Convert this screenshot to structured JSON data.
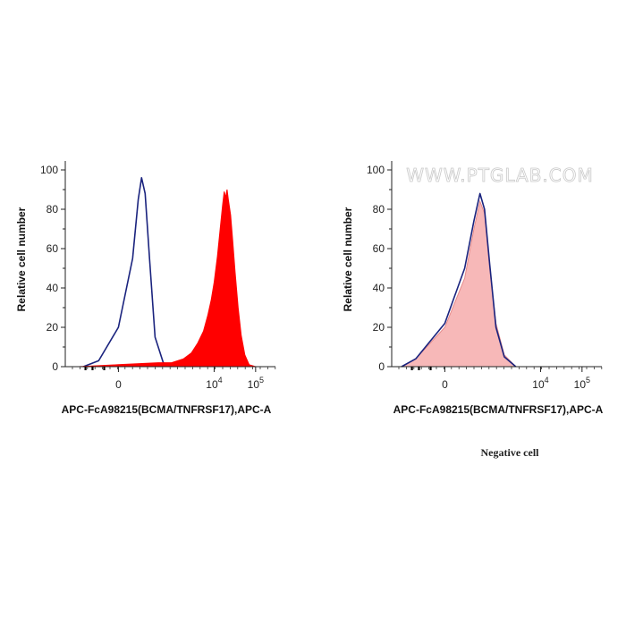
{
  "caption": "Negative cell",
  "watermark": "WWW.PTGLAB.COM",
  "colors": {
    "stained_fill": "#ff0000",
    "control_line": "#1a237e",
    "negative_fill": "#f7b8b8"
  },
  "chart_data": [
    {
      "type": "area",
      "xlabel": "APC-FcA98215(BCMA/TNFRSF17),APC-A",
      "ylabel": "Relative cell number",
      "x_scale": "biexponential",
      "ylim": [
        0,
        100
      ],
      "y_ticks": [
        0,
        20,
        40,
        60,
        80,
        100
      ],
      "x_tick_labels": [
        {
          "pos": 0,
          "base": "0",
          "exp": ""
        },
        {
          "pos": 10000,
          "base": "10",
          "exp": "4"
        },
        {
          "pos": 100000,
          "base": "10",
          "exp": "5"
        }
      ],
      "series": [
        {
          "style": "outline",
          "color": "#1a237e",
          "points": [
            [
              -300,
              0
            ],
            [
              -100,
              3
            ],
            [
              0,
              20
            ],
            [
              60,
              55
            ],
            [
              100,
              85
            ],
            [
              130,
              96
            ],
            [
              170,
              88
            ],
            [
              230,
              55
            ],
            [
              330,
              15
            ],
            [
              550,
              2
            ],
            [
              900,
              0
            ]
          ]
        },
        {
          "style": "filled",
          "color": "#ff0000",
          "points": [
            [
              -400,
              0
            ],
            [
              0,
              1
            ],
            [
              400,
              2
            ],
            [
              900,
              2
            ],
            [
              1800,
              4
            ],
            [
              2800,
              7
            ],
            [
              4000,
              12
            ],
            [
              5500,
              18
            ],
            [
              7000,
              26
            ],
            [
              8500,
              34
            ],
            [
              10000,
              43
            ],
            [
              12000,
              56
            ],
            [
              14000,
              70
            ],
            [
              16000,
              82
            ],
            [
              17500,
              89
            ],
            [
              19000,
              86
            ],
            [
              20500,
              90
            ],
            [
              22000,
              85
            ],
            [
              25000,
              77
            ],
            [
              28000,
              64
            ],
            [
              32000,
              48
            ],
            [
              38000,
              30
            ],
            [
              45000,
              16
            ],
            [
              55000,
              6
            ],
            [
              70000,
              1
            ],
            [
              100000,
              0
            ]
          ]
        }
      ]
    },
    {
      "type": "area",
      "xlabel": "APC-FcA98215(BCMA/TNFRSF17),APC-A",
      "ylabel": "Relative cell number",
      "x_scale": "biexponential",
      "ylim": [
        0,
        100
      ],
      "y_ticks": [
        0,
        20,
        40,
        60,
        80,
        100
      ],
      "x_tick_labels": [
        {
          "pos": 0,
          "base": "0",
          "exp": ""
        },
        {
          "pos": 10000,
          "base": "10",
          "exp": "4"
        },
        {
          "pos": 100000,
          "base": "10",
          "exp": "5"
        }
      ],
      "series": [
        {
          "style": "filled",
          "color": "#f7b8b8",
          "points": [
            [
              -500,
              0
            ],
            [
              -200,
              4
            ],
            [
              0,
              20
            ],
            [
              100,
              45
            ],
            [
              200,
              70
            ],
            [
              300,
              84
            ],
            [
              400,
              78
            ],
            [
              550,
              50
            ],
            [
              800,
              22
            ],
            [
              1300,
              6
            ],
            [
              2500,
              0
            ]
          ]
        },
        {
          "style": "outline",
          "color": "#1a237e",
          "points": [
            [
              -500,
              0
            ],
            [
              -200,
              4
            ],
            [
              0,
              22
            ],
            [
              100,
              50
            ],
            [
              200,
              74
            ],
            [
              300,
              88
            ],
            [
              400,
              80
            ],
            [
              550,
              52
            ],
            [
              800,
              20
            ],
            [
              1300,
              5
            ],
            [
              2500,
              0
            ]
          ]
        }
      ]
    }
  ]
}
